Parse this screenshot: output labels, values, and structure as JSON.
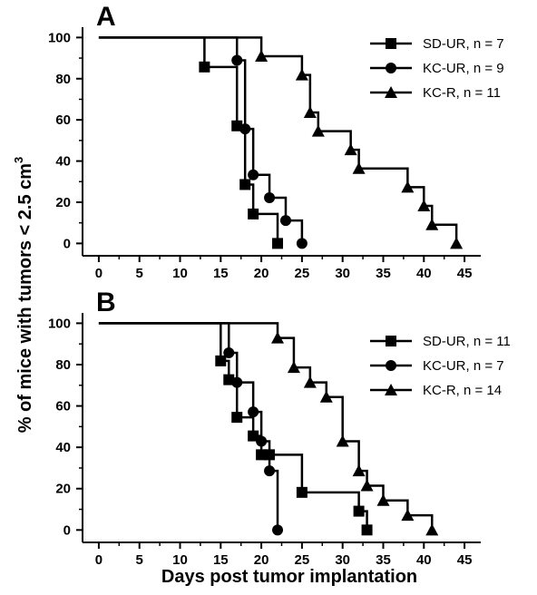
{
  "figure": {
    "shared_ylabel": "% of mice with tumors < 2.5  cm",
    "shared_ylabel_superscript": "3",
    "shared_xlabel": "Days post tumor implantation"
  },
  "chart_data": [
    {
      "type": "line",
      "step": true,
      "panel": "A",
      "xlabel": "Days post tumor implantation",
      "ylabel": "% of mice with tumors < 2.5 cm3",
      "xlim": [
        -2,
        47
      ],
      "ylim": [
        -6,
        105
      ],
      "x_ticks": [
        0,
        5,
        10,
        15,
        20,
        25,
        30,
        35,
        40,
        45
      ],
      "y_ticks": [
        0,
        20,
        40,
        60,
        80,
        100
      ],
      "grid": false,
      "legend_position": "top-right",
      "series": [
        {
          "name": "SD-UR, n = 7",
          "marker": "square",
          "x": [
            0,
            13,
            17,
            18,
            19,
            22
          ],
          "y": [
            100,
            85.7,
            57.1,
            28.6,
            14.3,
            0
          ]
        },
        {
          "name": "KC-UR, n = 9",
          "marker": "circle",
          "x": [
            0,
            17,
            18,
            19,
            21,
            23,
            25
          ],
          "y": [
            100,
            88.9,
            55.6,
            33.3,
            22.2,
            11.1,
            0
          ]
        },
        {
          "name": "KC-R, n = 11",
          "marker": "triangle",
          "x": [
            0,
            20,
            25,
            26,
            27,
            31,
            32,
            38,
            40,
            41,
            44
          ],
          "y": [
            100,
            90.9,
            81.8,
            63.6,
            54.5,
            45.5,
            36.4,
            27.3,
            18.2,
            9.1,
            0
          ]
        }
      ]
    },
    {
      "type": "line",
      "step": true,
      "panel": "B",
      "xlabel": "Days post tumor implantation",
      "ylabel": "% of mice with tumors < 2.5 cm3",
      "xlim": [
        -2,
        47
      ],
      "ylim": [
        -6,
        105
      ],
      "x_ticks": [
        0,
        5,
        10,
        15,
        20,
        25,
        30,
        35,
        40,
        45
      ],
      "y_ticks": [
        0,
        20,
        40,
        60,
        80,
        100
      ],
      "grid": false,
      "legend_position": "top-right",
      "series": [
        {
          "name": "SD-UR, n = 11",
          "marker": "square",
          "x": [
            0,
            15,
            16,
            17,
            19,
            20,
            21,
            25,
            32,
            33
          ],
          "y": [
            100,
            81.8,
            72.7,
            54.5,
            45.5,
            36.4,
            36.4,
            18.2,
            9.1,
            0
          ]
        },
        {
          "name": "KC-UR, n = 7",
          "marker": "circle",
          "x": [
            0,
            16,
            17,
            19,
            20,
            21,
            22
          ],
          "y": [
            100,
            85.7,
            71.4,
            57.1,
            42.9,
            28.6,
            0
          ]
        },
        {
          "name": "KC-R, n = 14",
          "marker": "triangle",
          "x": [
            0,
            22,
            24,
            26,
            28,
            30,
            32,
            33,
            35,
            38,
            41
          ],
          "y": [
            100,
            92.9,
            78.6,
            71.4,
            64.3,
            42.9,
            28.6,
            21.4,
            14.3,
            7.1,
            0
          ]
        }
      ]
    }
  ]
}
